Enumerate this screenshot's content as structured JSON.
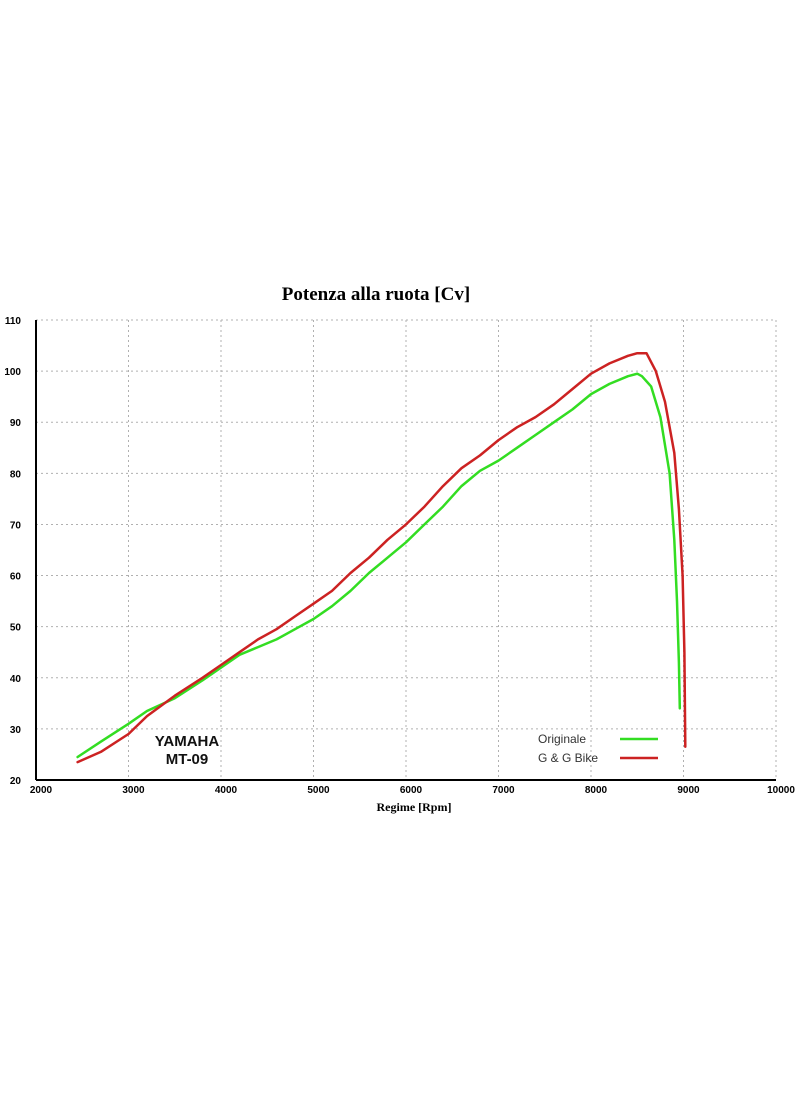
{
  "chart_data": {
    "type": "line",
    "title": "Potenza alla ruota [Cv]",
    "xlabel": "Regime [Rpm]",
    "ylabel": "",
    "xlim": [
      2000,
      10000
    ],
    "ylim": [
      20,
      110
    ],
    "xticks": [
      2000,
      3000,
      4000,
      5000,
      6000,
      7000,
      8000,
      9000,
      10000
    ],
    "yticks": [
      20,
      30,
      40,
      50,
      60,
      70,
      80,
      90,
      100,
      110
    ],
    "grid": true,
    "legend_position": "bottom-right",
    "annotation": {
      "line1": "YAMAHA",
      "line2": "MT-09"
    },
    "series": [
      {
        "name": "Originale",
        "color": "#33dd22",
        "x": [
          2450,
          2700,
          3000,
          3200,
          3500,
          3800,
          4000,
          4200,
          4400,
          4600,
          4800,
          5000,
          5200,
          5400,
          5600,
          5800,
          6000,
          6200,
          6400,
          6600,
          6800,
          7000,
          7200,
          7400,
          7600,
          7800,
          8000,
          8200,
          8400,
          8500,
          8550,
          8650,
          8750,
          8850,
          8900,
          8930,
          8950,
          8960
        ],
        "y": [
          24.5,
          27.5,
          31,
          33.5,
          36,
          39.5,
          42,
          44.5,
          46,
          47.5,
          49.5,
          51.5,
          54,
          57,
          60.5,
          63.5,
          66.5,
          70,
          73.5,
          77.5,
          80.5,
          82.5,
          85,
          87.5,
          90,
          92.5,
          95.5,
          97.5,
          99,
          99.5,
          99,
          97,
          91,
          80,
          67,
          55,
          43,
          34
        ]
      },
      {
        "name": "G & G Bike",
        "color": "#cc2222",
        "x": [
          2450,
          2700,
          3000,
          3200,
          3500,
          3800,
          4000,
          4200,
          4400,
          4600,
          4800,
          5000,
          5200,
          5400,
          5600,
          5800,
          6000,
          6200,
          6400,
          6600,
          6800,
          7000,
          7200,
          7400,
          7600,
          7800,
          8000,
          8200,
          8400,
          8500,
          8600,
          8700,
          8800,
          8900,
          8950,
          8990,
          9010,
          9020
        ],
        "y": [
          23.5,
          25.5,
          29,
          32.5,
          36.5,
          40,
          42.5,
          45,
          47.5,
          49.5,
          52,
          54.5,
          57,
          60.5,
          63.5,
          67,
          70,
          73.5,
          77.5,
          81,
          83.5,
          86.5,
          89,
          91,
          93.5,
          96.5,
          99.5,
          101.5,
          103,
          103.5,
          103.5,
          100,
          94,
          84,
          73,
          60,
          45,
          26.5
        ]
      }
    ]
  }
}
